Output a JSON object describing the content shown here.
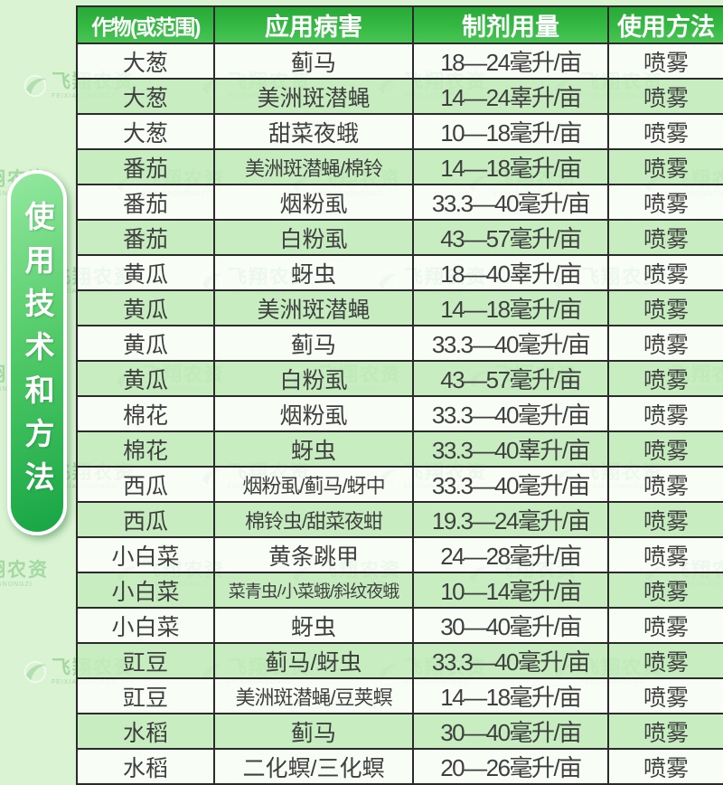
{
  "side_label": {
    "text": "使用技术和方法"
  },
  "watermark": {
    "line1": "飞翔农资",
    "line2": "FEIXIANGNONGZI"
  },
  "colors": {
    "page_background": "#d9f3d3",
    "header_green_top": "#29a838",
    "header_green_bottom": "#49c455",
    "stripe_green": "#c4ecbd",
    "row_white": "#ffffff",
    "pill_green_light": "#93e89f",
    "pill_green_dark": "#17a544",
    "border_dark": "#2b2b2b",
    "text_dark": "#3f3f3f",
    "watermark_green": "#78c37a"
  },
  "table": {
    "headers": [
      "作物(或范围)",
      "应用病害",
      "制剂用量",
      "使用方法"
    ],
    "rows": [
      {
        "crop": "大葱",
        "pest": "蓟马",
        "dosage": "18—24毫升/亩",
        "method": "喷雾"
      },
      {
        "crop": "大葱",
        "pest": "美洲斑潜蝇",
        "dosage": "14—24辜升/亩",
        "method": "喷雾"
      },
      {
        "crop": "大葱",
        "pest": "甜菜夜蛾",
        "dosage": "10—18毫升/亩",
        "method": "喷雾"
      },
      {
        "crop": "番茄",
        "pest": "美洲斑潜蝇/棉铃",
        "dosage": "14—18毫升/亩",
        "method": "喷雾"
      },
      {
        "crop": "番茄",
        "pest": "烟粉虱",
        "dosage": "33.3—40毫升/亩",
        "method": "喷雾"
      },
      {
        "crop": "番茄",
        "pest": "白粉虱",
        "dosage": "43—57毫升/亩",
        "method": "喷雾"
      },
      {
        "crop": "黄瓜",
        "pest": "蚜虫",
        "dosage": "18—40辜升/亩",
        "method": "喷雾"
      },
      {
        "crop": "黄瓜",
        "pest": "美洲斑潜蝇",
        "dosage": "14—18毫升/亩",
        "method": "喷雾"
      },
      {
        "crop": "黄瓜",
        "pest": "蓟马",
        "dosage": "33.3—40毫升/亩",
        "method": "喷雾"
      },
      {
        "crop": "黄瓜",
        "pest": "白粉虱",
        "dosage": "43—57毫升/亩",
        "method": "喷雾"
      },
      {
        "crop": "棉花",
        "pest": "烟粉虱",
        "dosage": "33.3—40毫升/亩",
        "method": "喷雾"
      },
      {
        "crop": "棉花",
        "pest": "蚜虫",
        "dosage": "33.3—40辜升/亩",
        "method": "喷雾"
      },
      {
        "crop": "西瓜",
        "pest": "烟粉虱/蓟马/蚜中",
        "dosage": "33.3—40毫升/亩",
        "method": "喷雾"
      },
      {
        "crop": "西瓜",
        "pest": "棉铃虫/甜菜夜蚶",
        "dosage": "19.3—24毫升/亩",
        "method": "喷雾"
      },
      {
        "crop": "小白菜",
        "pest": "黄条跳甲",
        "dosage": "24—28毫升/亩",
        "method": "喷雾"
      },
      {
        "crop": "小白菜",
        "pest": "菜青虫/小菜蛾/斜纹夜蛾",
        "dosage": "10—14毫升/亩",
        "method": "喷雾"
      },
      {
        "crop": "小白菜",
        "pest": "蚜虫",
        "dosage": "30—40毫升/亩",
        "method": "喷雾"
      },
      {
        "crop": "豇豆",
        "pest": "蓟马/蚜虫",
        "dosage": "33.3—40毫升/亩",
        "method": "喷雾"
      },
      {
        "crop": "豇豆",
        "pest": "美洲斑潜蝇/豆荚螟",
        "dosage": "14—18毫升/亩",
        "method": "喷雾"
      },
      {
        "crop": "水稻",
        "pest": "蓟马",
        "dosage": "30—40毫升/亩",
        "method": "喷雾"
      },
      {
        "crop": "水稻",
        "pest": "二化螟/三化螟",
        "dosage": "20—26毫升/亩",
        "method": "喷雾"
      }
    ]
  }
}
